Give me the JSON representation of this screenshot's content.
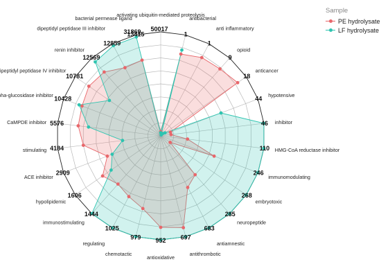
{
  "chart_data": {
    "type": "radar",
    "title": "",
    "legend": {
      "title": "Sample",
      "position": "top-right",
      "entries": [
        {
          "name": "PE hydrolysate",
          "color": "#e8676b"
        },
        {
          "name": "LF hydrolysate",
          "color": "#2ec4b0"
        }
      ]
    },
    "categories": [
      {
        "name": "activating ubiquitin-mediated proteolysis",
        "value": ""
      },
      {
        "name": "antibacterial",
        "value": "1"
      },
      {
        "name": "anti inflammatory",
        "value": "1"
      },
      {
        "name": "opioid",
        "value": "9"
      },
      {
        "name": "anticancer",
        "value": "18"
      },
      {
        "name": "hypotensive",
        "value": "44"
      },
      {
        "name": "inhibitor",
        "value": "46"
      },
      {
        "name": "HMG-CoA reductase inhibitor",
        "value": "110"
      },
      {
        "name": "immunomodulating",
        "value": "246"
      },
      {
        "name": "embryotoxic",
        "value": "268"
      },
      {
        "name": "neuropeptide",
        "value": "285"
      },
      {
        "name": "antiamnestic",
        "value": "683"
      },
      {
        "name": "antithrombotic",
        "value": "697"
      },
      {
        "name": "antioxidative",
        "value": "952"
      },
      {
        "name": "chemotactic",
        "value": "979"
      },
      {
        "name": "regulating",
        "value": "1025"
      },
      {
        "name": "immunostimulating",
        "value": "1444"
      },
      {
        "name": "hypolipidemic",
        "value": "1606"
      },
      {
        "name": "ACE inhibitor",
        "value": "2909"
      },
      {
        "name": "stimulating",
        "value": "4184"
      },
      {
        "name": "CaMPDE inhibitor",
        "value": "5576"
      },
      {
        "name": "alpha-glucosidase inhibitor",
        "value": "10428"
      },
      {
        "name": "dipeptidyl peptidase IV inhibitor",
        "value": "10781"
      },
      {
        "name": "renin inhibitor",
        "value": "12569"
      },
      {
        "name": "dipeptidyl peptidase III inhibitor",
        "value": "12859"
      },
      {
        "name": "bacterial permease ligand",
        "value": "13415"
      }
    ],
    "extra_value_labels": [
      "31869",
      "50017"
    ],
    "scale": {
      "min": 0,
      "max": 1,
      "rings": 8
    },
    "series": [
      {
        "name": "PE hydrolysate",
        "color": "#e8676b",
        "values": [
          0.04,
          0.81,
          0.85,
          0.86,
          0.9,
          0.1,
          0.1,
          0.26,
          0.55,
          0.11,
          0.5,
          0.56,
          0.91,
          0.88,
          0.72,
          0.66,
          0.62,
          0.68,
          0.55,
          0.75,
          0.8,
          0.81,
          0.84,
          0.82,
          0.74,
          0.75
        ]
      },
      {
        "name": "LF hydrolysate",
        "color": "#2ec4b0",
        "values": [
          0.03,
          0.85,
          0.01,
          0.03,
          0.05,
          0.62,
          1.0,
          1.0,
          1.0,
          1.0,
          1.0,
          1.0,
          1.0,
          1.0,
          1.0,
          1.0,
          1.0,
          0.58,
          0.5,
          0.37,
          0.7,
          0.84,
          0.6,
          0.95,
          0.98,
          0.98
        ]
      }
    ]
  }
}
